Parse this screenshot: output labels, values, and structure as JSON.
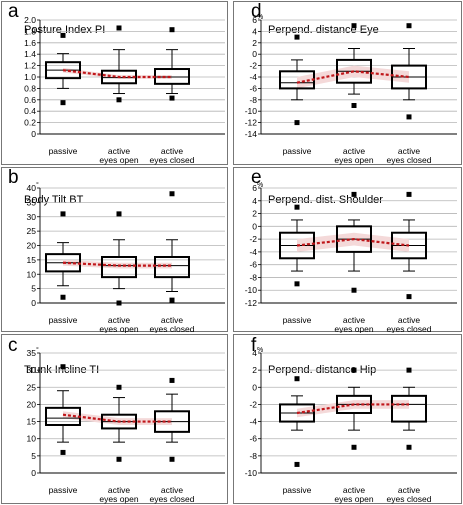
{
  "figure": {
    "background": "#ffffff",
    "grid_color": "#b5b5b5",
    "box_color": "#000000",
    "trend_color": "#c0161a",
    "band_color": "#f4d9d9"
  },
  "chart_data": [
    {
      "id": "a",
      "type": "box",
      "letter": "a",
      "title": "Posture Index  PI",
      "categories": [
        {
          "line1": "passive",
          "line2": ""
        },
        {
          "line1": "active",
          "line2": "eyes open"
        },
        {
          "line1": "active",
          "line2": "eyes closed"
        }
      ],
      "ylim": [
        0,
        2.0
      ],
      "yticks": [
        0,
        0.2,
        0.4,
        0.6,
        0.8,
        1.0,
        1.2,
        1.4,
        1.6,
        1.8,
        2.0
      ],
      "ytick_labels": [
        "0",
        "0.2",
        "0.4",
        "0.6",
        "0.8",
        "1.0",
        "1.2",
        "1.4",
        "1.6",
        "1.8",
        "2.0"
      ],
      "grid": true,
      "band_lower": [
        1.08,
        0.97,
        0.97
      ],
      "band_upper": [
        1.16,
        1.03,
        1.03
      ],
      "series": [
        {
          "min": 0.8,
          "q1": 0.98,
          "median": 1.12,
          "q3": 1.26,
          "max": 1.41,
          "outliers": [
            1.73,
            0.55
          ],
          "mean": 1.12
        },
        {
          "min": 0.71,
          "q1": 0.89,
          "median": 0.99,
          "q3": 1.11,
          "max": 1.48,
          "outliers": [
            1.86,
            0.6
          ],
          "mean": 1.0
        },
        {
          "min": 0.71,
          "q1": 0.88,
          "median": 1.0,
          "q3": 1.14,
          "max": 1.48,
          "outliers": [
            1.83,
            0.63
          ],
          "mean": 1.0
        }
      ]
    },
    {
      "id": "b",
      "type": "box",
      "letter": "b",
      "title": "Body Tilt  BT",
      "categories": [
        {
          "line1": "passive",
          "line2": ""
        },
        {
          "line1": "active",
          "line2": "eyes open"
        },
        {
          "line1": "active",
          "line2": "eyes closed"
        }
      ],
      "ylim": [
        0,
        40
      ],
      "yticks": [
        0,
        5,
        10,
        15,
        20,
        25,
        30,
        35,
        40
      ],
      "ytick_labels": [
        "0",
        "5",
        "10",
        "15",
        "20",
        "25",
        "30",
        "35",
        "40"
      ],
      "ytick_suffix": "°",
      "grid": true,
      "band_lower": [
        13,
        12,
        12
      ],
      "band_upper": [
        15,
        14,
        14
      ],
      "series": [
        {
          "min": 6,
          "q1": 11,
          "median": 14,
          "q3": 17,
          "max": 21,
          "outliers": [
            31,
            2
          ],
          "mean": 14
        },
        {
          "min": 5,
          "q1": 9,
          "median": 13,
          "q3": 16,
          "max": 22,
          "outliers": [
            31,
            0
          ],
          "mean": 13
        },
        {
          "min": 4,
          "q1": 9,
          "median": 13,
          "q3": 16,
          "max": 22,
          "outliers": [
            38,
            1
          ],
          "mean": 13
        }
      ]
    },
    {
      "id": "c",
      "type": "box",
      "letter": "c",
      "title": "Trunk Incline  TI",
      "categories": [
        {
          "line1": "passive",
          "line2": ""
        },
        {
          "line1": "active",
          "line2": "eyes open"
        },
        {
          "line1": "active",
          "line2": "eyes closed"
        }
      ],
      "ylim": [
        0,
        35
      ],
      "yticks": [
        0,
        5,
        10,
        15,
        20,
        25,
        30,
        35
      ],
      "ytick_labels": [
        "0",
        "5",
        "10",
        "15",
        "20",
        "25",
        "30",
        "35"
      ],
      "ytick_suffix": "°",
      "grid": true,
      "band_lower": [
        16,
        14,
        14
      ],
      "band_upper": [
        18,
        16,
        16
      ],
      "series": [
        {
          "min": 9,
          "q1": 14,
          "median": 16,
          "q3": 19,
          "max": 24,
          "outliers": [
            31,
            6
          ],
          "mean": 17
        },
        {
          "min": 9,
          "q1": 13,
          "median": 15,
          "q3": 17,
          "max": 22,
          "outliers": [
            25,
            4
          ],
          "mean": 15
        },
        {
          "min": 9,
          "q1": 12,
          "median": 15,
          "q3": 18,
          "max": 23,
          "outliers": [
            27,
            4
          ],
          "mean": 15
        }
      ]
    },
    {
      "id": "d",
      "type": "box",
      "letter": "d",
      "title": "Perpend. distance Eye",
      "categories": [
        {
          "line1": "passive",
          "line2": ""
        },
        {
          "line1": "active",
          "line2": "eyes open"
        },
        {
          "line1": "active",
          "line2": "eyes closed"
        }
      ],
      "ylim": [
        -14,
        6
      ],
      "yticks": [
        -14,
        -12,
        -10,
        -8,
        -6,
        -4,
        -2,
        0,
        2,
        4,
        6
      ],
      "ytick_labels": [
        "-14",
        "-12",
        "-10",
        "-8",
        "-6",
        "-4",
        "-2",
        "0",
        "2",
        "4",
        "6"
      ],
      "ytick_suffix": "%",
      "grid": true,
      "band_lower": [
        -6,
        -4,
        -5
      ],
      "band_upper": [
        -4,
        -2,
        -3
      ],
      "series": [
        {
          "min": -8,
          "q1": -6,
          "median": -5,
          "q3": -3,
          "max": -1,
          "outliers": [
            3,
            -12
          ],
          "mean": -5
        },
        {
          "min": -7,
          "q1": -5,
          "median": -3,
          "q3": -1,
          "max": 1,
          "outliers": [
            5,
            -9
          ],
          "mean": -3
        },
        {
          "min": -8,
          "q1": -6,
          "median": -4,
          "q3": -2,
          "max": 1,
          "outliers": [
            5,
            -11
          ],
          "mean": -4
        }
      ]
    },
    {
      "id": "e",
      "type": "box",
      "letter": "e",
      "title": "Perpend. dist. Shoulder",
      "categories": [
        {
          "line1": "passive",
          "line2": ""
        },
        {
          "line1": "active",
          "line2": "eyes open"
        },
        {
          "line1": "active",
          "line2": "eyes closed"
        }
      ],
      "ylim": [
        -12,
        6
      ],
      "yticks": [
        -12,
        -10,
        -8,
        -6,
        -4,
        -2,
        0,
        2,
        4,
        6
      ],
      "ytick_labels": [
        "-12",
        "-10",
        "-8",
        "-6",
        "-4",
        "-2",
        "0",
        "2",
        "4",
        "6"
      ],
      "ytick_suffix": "%",
      "grid": true,
      "band_lower": [
        -4,
        -3,
        -4
      ],
      "band_upper": [
        -2,
        -1,
        -2
      ],
      "series": [
        {
          "min": -7,
          "q1": -5,
          "median": -3,
          "q3": -1,
          "max": 1,
          "outliers": [
            3,
            -9
          ],
          "mean": -3
        },
        {
          "min": -7,
          "q1": -4,
          "median": -2,
          "q3": 0,
          "max": 1,
          "outliers": [
            5,
            -10
          ],
          "mean": -2
        },
        {
          "min": -7,
          "q1": -5,
          "median": -3,
          "q3": -1,
          "max": 1,
          "outliers": [
            5,
            -11
          ],
          "mean": -3
        }
      ]
    },
    {
      "id": "f",
      "type": "box",
      "letter": "f",
      "title": "Perpend. distance Hip",
      "categories": [
        {
          "line1": "passive",
          "line2": ""
        },
        {
          "line1": "active",
          "line2": "eyes open"
        },
        {
          "line1": "active",
          "line2": "eyes closed"
        }
      ],
      "ylim": [
        -10,
        4
      ],
      "yticks": [
        -10,
        -8,
        -6,
        -4,
        -2,
        0,
        2,
        4
      ],
      "ytick_labels": [
        "-10",
        "-8",
        "-6",
        "-4",
        "-2",
        "0",
        "2",
        "4"
      ],
      "ytick_suffix": "%",
      "grid": true,
      "band_lower": [
        -3.5,
        -2.5,
        -2.5
      ],
      "band_upper": [
        -2.5,
        -1.5,
        -1.5
      ],
      "series": [
        {
          "min": -5,
          "q1": -4,
          "median": -3,
          "q3": -2,
          "max": -1,
          "outliers": [
            1,
            -9
          ],
          "mean": -3
        },
        {
          "min": -5,
          "q1": -3,
          "median": -2,
          "q3": -1,
          "max": 0,
          "outliers": [
            2,
            -7
          ],
          "mean": -2
        },
        {
          "min": -5,
          "q1": -4,
          "median": -2,
          "q3": -1,
          "max": 0,
          "outliers": [
            2,
            -7
          ],
          "mean": -2
        }
      ]
    }
  ]
}
